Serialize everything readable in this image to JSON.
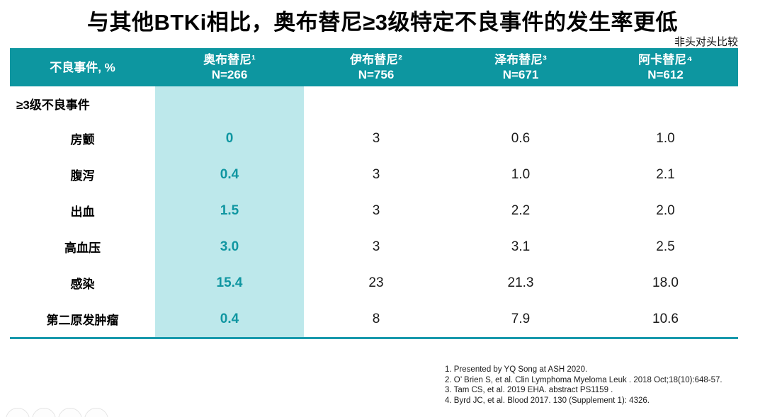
{
  "title": "与其他BTKi相比，奥布替尼≥3级特定不良事件的发生率更低",
  "subtitle": "非头对头比较",
  "colors": {
    "header_teal": "#0d96a0",
    "highlight_column": "#bde8eb",
    "highlight_value_text": "#0f96a1",
    "bottom_rule": "#1899ac"
  },
  "table": {
    "header": {
      "col0": "不良事件, %",
      "columns": [
        {
          "name": "奥布替尼¹",
          "n": "N=266"
        },
        {
          "name": "伊布替尼²",
          "n": "N=756"
        },
        {
          "name": "泽布替尼³",
          "n": "N=671"
        },
        {
          "name": "阿卡替尼⁴",
          "n": "N=612"
        }
      ]
    },
    "section_label": "≥3级不良事件",
    "rows": [
      {
        "label": "房颤",
        "values": [
          "0",
          "3",
          "0.6",
          "1.0"
        ]
      },
      {
        "label": "腹泻",
        "values": [
          "0.4",
          "3",
          "1.0",
          "2.1"
        ]
      },
      {
        "label": "出血",
        "values": [
          "1.5",
          "3",
          "2.2",
          "2.0"
        ]
      },
      {
        "label": "高血压",
        "values": [
          "3.0",
          "3",
          "3.1",
          "2.5"
        ]
      },
      {
        "label": "感染",
        "values": [
          "15.4",
          "23",
          "21.3",
          "18.0"
        ]
      },
      {
        "label": "第二原发肿瘤",
        "values": [
          "0.4",
          "8",
          "7.9",
          "10.6"
        ]
      }
    ]
  },
  "footnotes": [
    "1. Presented by YQ Song at ASH 2020.",
    "2. O’ Brien S, et al. Clin Lymphoma Myeloma Leuk . 2018 Oct;18(10):648-57.",
    "3. Tam CS, et al. 2019 EHA. abstract PS1159 .",
    "4. Byrd JC, et al. Blood 2017. 130 (Supplement 1): 4326."
  ]
}
